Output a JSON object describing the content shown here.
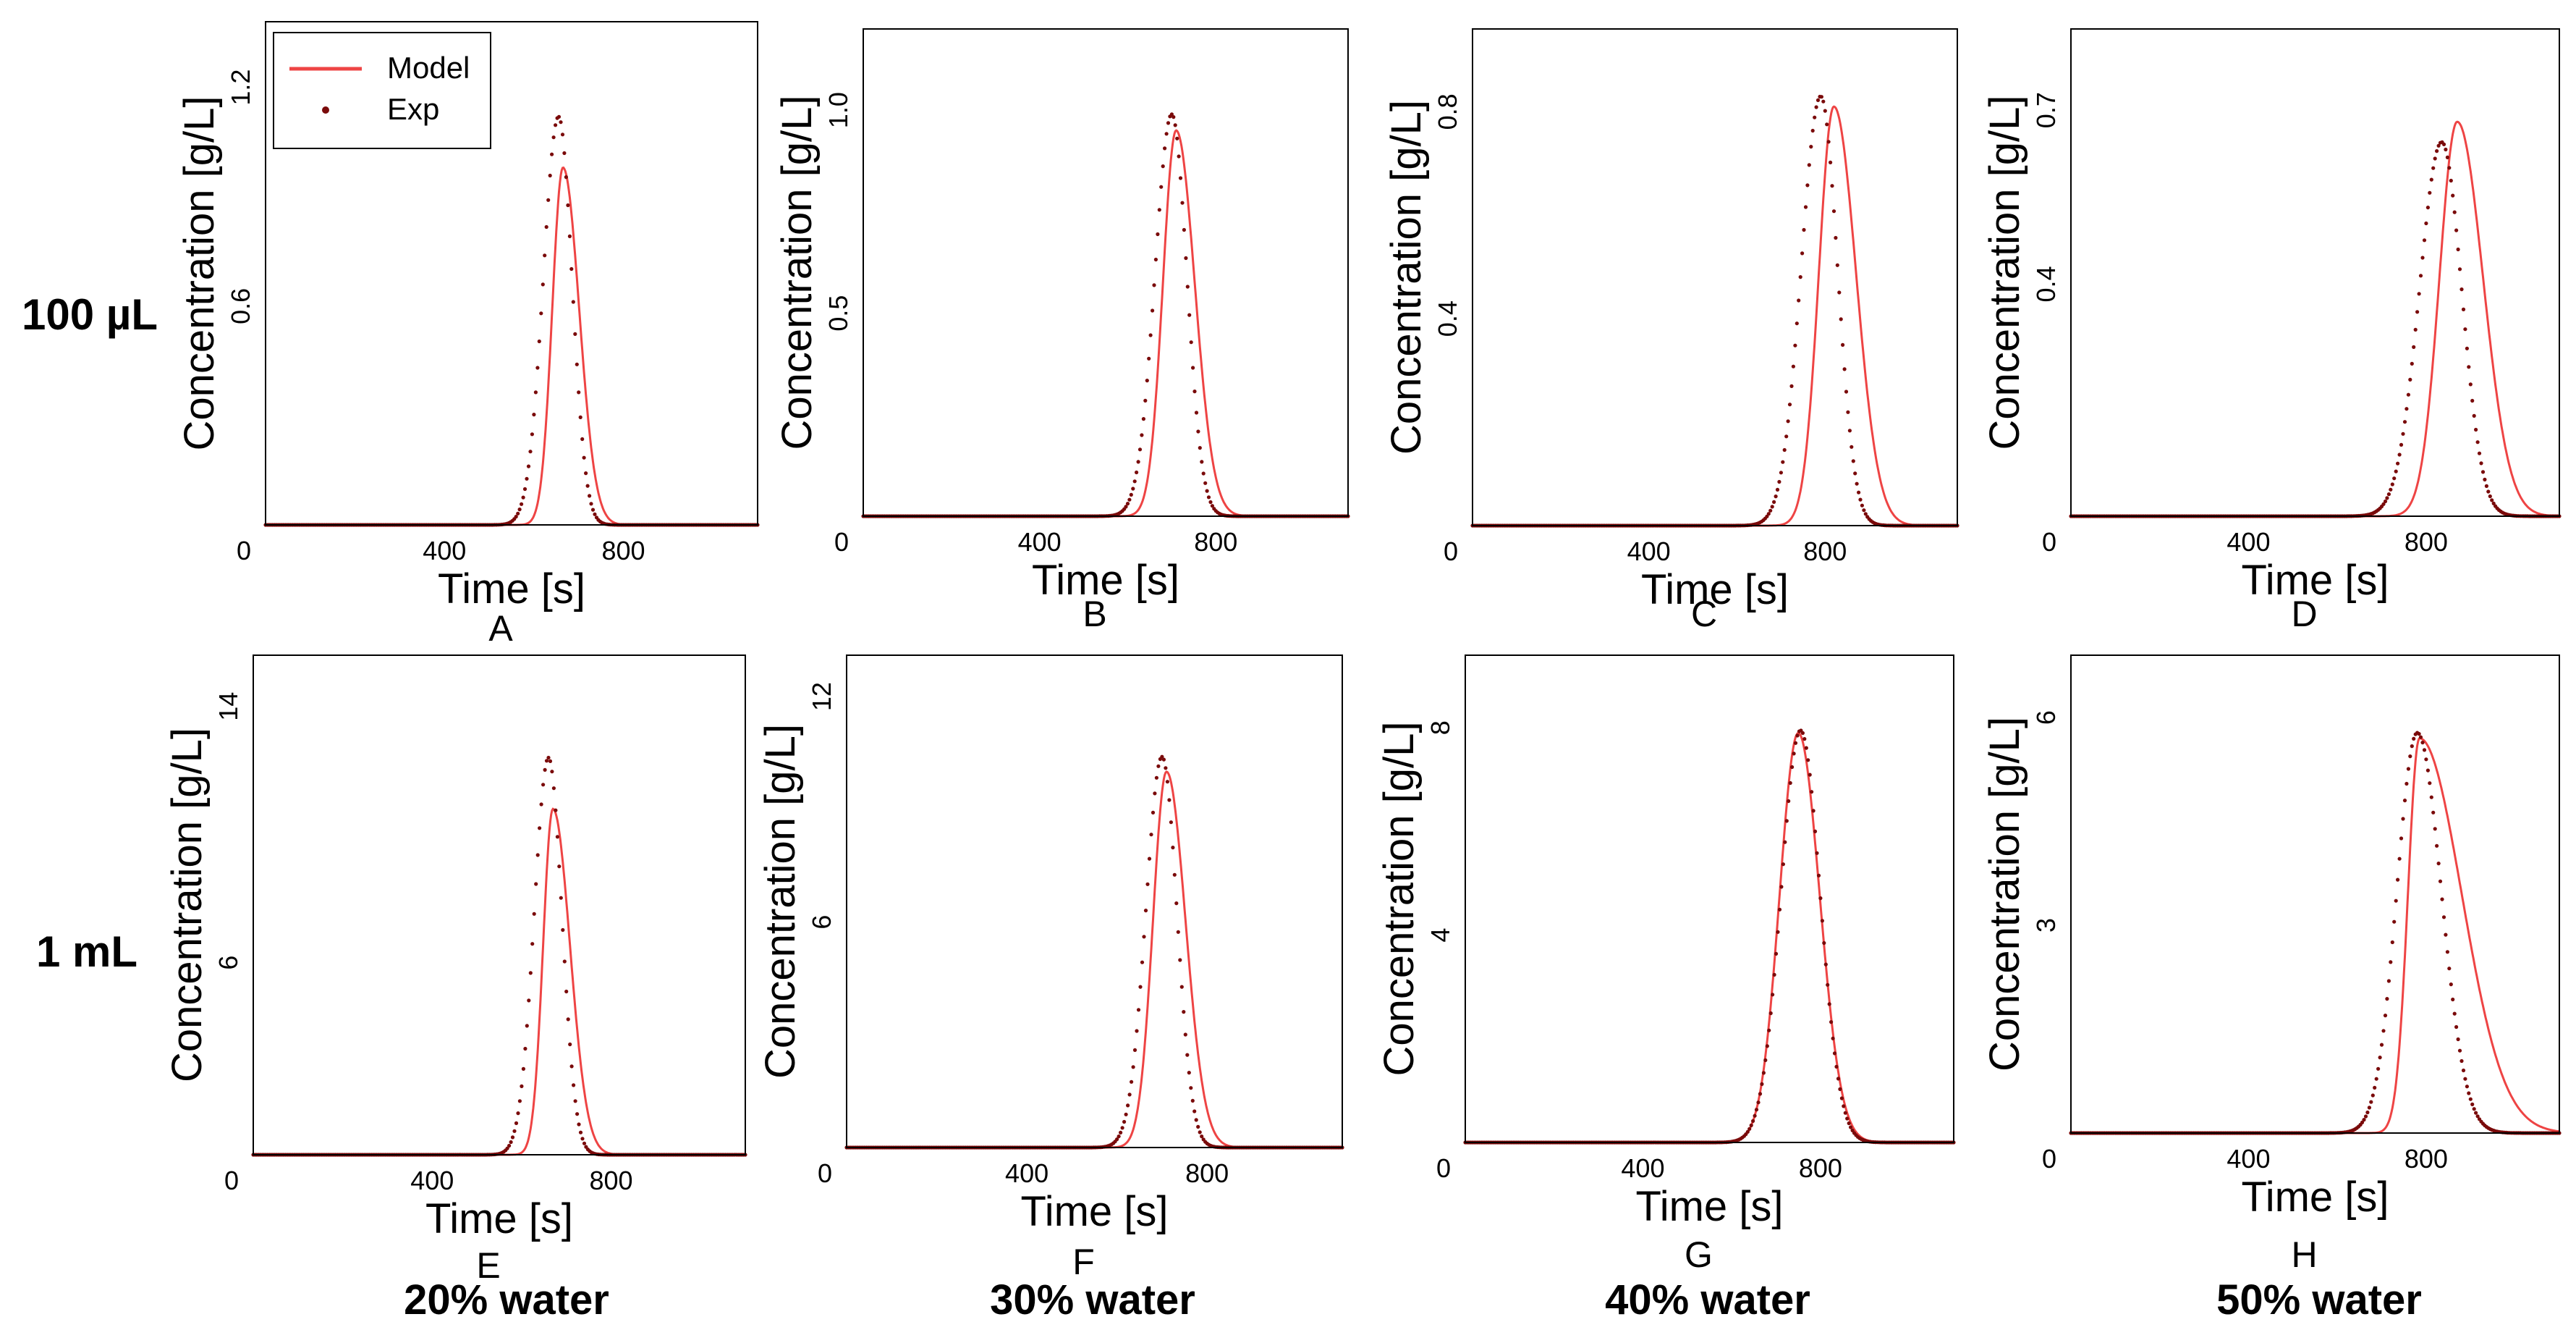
{
  "figure": {
    "row_labels": [
      "100 µL",
      "1 mL"
    ],
    "column_labels": [
      "20% water",
      "30% water",
      "40% water",
      "50% water"
    ],
    "legend": {
      "model_label": "Model",
      "exp_label": "Exp"
    }
  },
  "colors": {
    "model": "#ee4444",
    "exp": "#7a0a0a",
    "frame": "#000000"
  },
  "chart_data": [
    {
      "id": "A",
      "type": "line",
      "xlabel": "Time [s]",
      "ylabel": "Concentration [g/L]",
      "xlim": [
        0,
        1100
      ],
      "ylim": [
        0,
        1.38
      ],
      "xticks": [
        "0",
        "400",
        "800"
      ],
      "xtick_values": [
        0,
        400,
        800
      ],
      "yticks": [
        "0.6",
        "1.2"
      ],
      "ytick_values": [
        0.6,
        1.2
      ],
      "series": [
        {
          "name": "Model",
          "peak_time": 665,
          "peak_height": 0.98,
          "sigma_left": 24,
          "sigma_right": 36
        },
        {
          "name": "Exp",
          "peak_time": 655,
          "peak_height": 1.12,
          "sigma_left": 34,
          "sigma_right": 30
        }
      ]
    },
    {
      "id": "B",
      "type": "line",
      "xlabel": "Time [s]",
      "ylabel": "Concentration [g/L]",
      "xlim": [
        0,
        1100
      ],
      "ylim": [
        0,
        1.2
      ],
      "xticks": [
        "0",
        "400",
        "800"
      ],
      "xtick_values": [
        0,
        400,
        800
      ],
      "yticks": [
        "0.5",
        "1.0"
      ],
      "ytick_values": [
        0.5,
        1.0
      ],
      "series": [
        {
          "name": "Model",
          "peak_time": 710,
          "peak_height": 0.95,
          "sigma_left": 30,
          "sigma_right": 42
        },
        {
          "name": "Exp",
          "peak_time": 700,
          "peak_height": 0.99,
          "sigma_left": 38,
          "sigma_right": 34
        }
      ]
    },
    {
      "id": "C",
      "type": "line",
      "xlabel": "Time [s]",
      "ylabel": "Concentration [g/L]",
      "xlim": [
        0,
        1100
      ],
      "ylim": [
        0,
        0.96
      ],
      "xticks": [
        "0",
        "400",
        "800"
      ],
      "xtick_values": [
        0,
        400,
        800
      ],
      "yticks": [
        "0.4",
        "0.8"
      ],
      "ytick_values": [
        0.4,
        0.8
      ],
      "series": [
        {
          "name": "Model",
          "peak_time": 820,
          "peak_height": 0.81,
          "sigma_left": 34,
          "sigma_right": 50
        },
        {
          "name": "Exp",
          "peak_time": 790,
          "peak_height": 0.83,
          "sigma_left": 44,
          "sigma_right": 38
        }
      ]
    },
    {
      "id": "D",
      "type": "line",
      "xlabel": "Time [s]",
      "ylabel": "Concentration [g/L]",
      "xlim": [
        0,
        1100
      ],
      "ylim": [
        0,
        0.84
      ],
      "xticks": [
        "0",
        "400",
        "800"
      ],
      "xtick_values": [
        0,
        400,
        800
      ],
      "yticks": [
        "0.4",
        "0.7"
      ],
      "ytick_values": [
        0.4,
        0.7
      ],
      "series": [
        {
          "name": "Model",
          "peak_time": 870,
          "peak_height": 0.68,
          "sigma_left": 40,
          "sigma_right": 58
        },
        {
          "name": "Exp",
          "peak_time": 835,
          "peak_height": 0.645,
          "sigma_left": 50,
          "sigma_right": 45
        }
      ]
    },
    {
      "id": "E",
      "type": "line",
      "xlabel": "Time [s]",
      "ylabel": "Concentration [g/L]",
      "xlim": [
        0,
        1100
      ],
      "ylim": [
        0,
        15.6
      ],
      "xticks": [
        "0",
        "400",
        "800"
      ],
      "xtick_values": [
        0,
        400,
        800
      ],
      "yticks": [
        "6",
        "14"
      ],
      "ytick_values": [
        6,
        14
      ],
      "series": [
        {
          "name": "Model",
          "peak_time": 670,
          "peak_height": 10.8,
          "sigma_left": 22,
          "sigma_right": 38
        },
        {
          "name": "Exp",
          "peak_time": 660,
          "peak_height": 12.4,
          "sigma_left": 32,
          "sigma_right": 30
        }
      ]
    },
    {
      "id": "F",
      "type": "line",
      "xlabel": "Time [s]",
      "ylabel": "Concentration [g/L]",
      "xlim": [
        0,
        1100
      ],
      "ylim": [
        0,
        13.1
      ],
      "xticks": [
        "0",
        "400",
        "800"
      ],
      "xtick_values": [
        0,
        400,
        800
      ],
      "yticks": [
        "6",
        "12"
      ],
      "ytick_values": [
        6,
        12
      ],
      "series": [
        {
          "name": "Model",
          "peak_time": 710,
          "peak_height": 10.0,
          "sigma_left": 30,
          "sigma_right": 42
        },
        {
          "name": "Exp",
          "peak_time": 700,
          "peak_height": 10.4,
          "sigma_left": 36,
          "sigma_right": 33
        }
      ]
    },
    {
      "id": "G",
      "type": "line",
      "xlabel": "Time [s]",
      "ylabel": "Concentration [g/L]",
      "xlim": [
        0,
        1100
      ],
      "ylim": [
        0,
        9.4
      ],
      "xticks": [
        "0",
        "400",
        "800"
      ],
      "xtick_values": [
        0,
        400,
        800
      ],
      "yticks": [
        "4",
        "8"
      ],
      "ytick_values": [
        4,
        8
      ],
      "series": [
        {
          "name": "Model",
          "peak_time": 750,
          "peak_height": 7.9,
          "sigma_left": 42,
          "sigma_right": 48
        },
        {
          "name": "Exp",
          "peak_time": 755,
          "peak_height": 7.95,
          "sigma_left": 44,
          "sigma_right": 44
        }
      ]
    },
    {
      "id": "H",
      "type": "line",
      "xlabel": "Time [s]",
      "ylabel": "Concentration [g/L]",
      "xlim": [
        0,
        1100
      ],
      "ylim": [
        0,
        6.9
      ],
      "xticks": [
        "0",
        "400",
        "800"
      ],
      "xtick_values": [
        0,
        400,
        800
      ],
      "yticks": [
        "3",
        "6"
      ],
      "ytick_values": [
        3,
        6
      ],
      "series": [
        {
          "name": "Model",
          "peak_time": 785,
          "peak_height": 5.7,
          "sigma_left": 26,
          "sigma_right": 95
        },
        {
          "name": "Exp",
          "peak_time": 780,
          "peak_height": 5.78,
          "sigma_left": 46,
          "sigma_right": 54
        }
      ]
    }
  ]
}
